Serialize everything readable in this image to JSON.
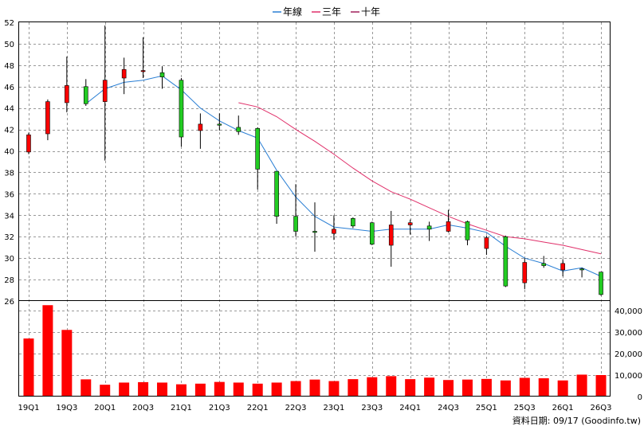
{
  "chart_data": {
    "type": "candlestick-volume",
    "legend": [
      {
        "name": "年線",
        "color": "#2a7fd4"
      },
      {
        "name": "三年",
        "color": "#e0306a"
      },
      {
        "name": "十年",
        "color": "#a0205a"
      }
    ],
    "price_axis": {
      "min": 26,
      "max": 52,
      "ticks": [
        26,
        28,
        30,
        32,
        34,
        36,
        38,
        40,
        42,
        44,
        46,
        48,
        50,
        52
      ]
    },
    "volume_axis": {
      "min": 0,
      "max": 40000,
      "ticks": [
        "0",
        "10,000",
        "20,000",
        "30,000",
        "40,000"
      ],
      "tick_values": [
        0,
        10000,
        20000,
        30000,
        40000
      ]
    },
    "x_tick_labels": [
      {
        "index": 0,
        "label": "19Q1"
      },
      {
        "index": 2,
        "label": "19Q3"
      },
      {
        "index": 4,
        "label": "20Q1"
      },
      {
        "index": 6,
        "label": "20Q3"
      },
      {
        "index": 8,
        "label": "21Q1"
      },
      {
        "index": 10,
        "label": "21Q3"
      },
      {
        "index": 12,
        "label": "22Q1"
      },
      {
        "index": 14,
        "label": "22Q3"
      },
      {
        "index": 16,
        "label": "23Q1"
      },
      {
        "index": 18,
        "label": "23Q3"
      },
      {
        "index": 20,
        "label": "24Q1"
      },
      {
        "index": 22,
        "label": "24Q3"
      },
      {
        "index": 24,
        "label": "25Q1"
      },
      {
        "index": 26,
        "label": "25Q3"
      },
      {
        "index": 28,
        "label": "26Q1"
      },
      {
        "index": 30,
        "label": "26Q3"
      }
    ],
    "candles": [
      {
        "o": 39.9,
        "h": 41.7,
        "l": 39.7,
        "c": 41.5
      },
      {
        "o": 41.6,
        "h": 44.8,
        "l": 41.0,
        "c": 44.6
      },
      {
        "o": 44.5,
        "h": 48.8,
        "l": 43.6,
        "c": 46.1
      },
      {
        "o": 46.0,
        "h": 46.7,
        "l": 44.2,
        "c": 44.4
      },
      {
        "o": 44.6,
        "h": 51.7,
        "l": 39.1,
        "c": 46.6
      },
      {
        "o": 46.8,
        "h": 48.7,
        "l": 45.3,
        "c": 47.6
      },
      {
        "o": 47.4,
        "h": 50.6,
        "l": 46.8,
        "c": 47.5
      },
      {
        "o": 47.3,
        "h": 47.9,
        "l": 45.8,
        "c": 46.9
      },
      {
        "o": 46.6,
        "h": 46.8,
        "l": 40.4,
        "c": 41.3
      },
      {
        "o": 41.9,
        "h": 43.5,
        "l": 40.2,
        "c": 42.5
      },
      {
        "o": 42.5,
        "h": 43.5,
        "l": 41.9,
        "c": 42.4
      },
      {
        "o": 42.2,
        "h": 43.3,
        "l": 41.5,
        "c": 41.8
      },
      {
        "o": 42.1,
        "h": 42.2,
        "l": 36.4,
        "c": 38.3
      },
      {
        "o": 38.1,
        "h": 38.1,
        "l": 33.2,
        "c": 33.9
      },
      {
        "o": 33.9,
        "h": 36.9,
        "l": 32.0,
        "c": 32.5
      },
      {
        "o": 32.5,
        "h": 35.2,
        "l": 30.6,
        "c": 32.4
      },
      {
        "o": 32.3,
        "h": 34.0,
        "l": 31.7,
        "c": 32.7
      },
      {
        "o": 33.7,
        "h": 33.8,
        "l": 32.8,
        "c": 33.0
      },
      {
        "o": 33.3,
        "h": 33.4,
        "l": 31.2,
        "c": 31.3
      },
      {
        "o": 31.2,
        "h": 34.4,
        "l": 29.2,
        "c": 33.1
      },
      {
        "o": 33.1,
        "h": 33.6,
        "l": 32.2,
        "c": 33.3
      },
      {
        "o": 33.0,
        "h": 33.4,
        "l": 31.6,
        "c": 32.7
      },
      {
        "o": 32.5,
        "h": 34.5,
        "l": 32.4,
        "c": 33.4
      },
      {
        "o": 33.4,
        "h": 33.5,
        "l": 31.2,
        "c": 31.7
      },
      {
        "o": 30.9,
        "h": 32.1,
        "l": 30.3,
        "c": 31.9
      },
      {
        "o": 32.0,
        "h": 32.1,
        "l": 27.3,
        "c": 27.4
      },
      {
        "o": 27.7,
        "h": 30.0,
        "l": 27.1,
        "c": 29.6
      },
      {
        "o": 29.5,
        "h": 30.2,
        "l": 29.1,
        "c": 29.3
      },
      {
        "o": 28.9,
        "h": 29.9,
        "l": 28.3,
        "c": 29.5
      },
      {
        "o": 29.0,
        "h": 29.1,
        "l": 28.2,
        "c": 28.9
      },
      {
        "o": 28.7,
        "h": 28.7,
        "l": 26.5,
        "c": 26.6
      }
    ],
    "volumes": [
      27000,
      42500,
      31000,
      8000,
      5500,
      6500,
      6700,
      6500,
      5700,
      6000,
      6800,
      6500,
      6000,
      6500,
      7200,
      7900,
      7200,
      8100,
      9000,
      9500,
      8100,
      8800,
      7700,
      7900,
      8200,
      7500,
      8700,
      8500,
      7500,
      10200,
      10000
    ],
    "series": [
      {
        "name": "年線",
        "color": "#2a7fd4",
        "x": [
          3,
          4,
          5,
          6,
          7,
          8,
          9,
          10,
          11,
          12,
          13,
          14,
          15,
          16,
          17,
          18,
          19,
          20,
          21,
          22,
          23,
          24,
          25,
          26,
          27,
          28,
          29,
          30
        ],
        "values": [
          44.4,
          45.8,
          46.4,
          46.6,
          47.0,
          45.7,
          44.0,
          42.8,
          41.9,
          41.2,
          38.2,
          35.7,
          33.9,
          32.9,
          32.7,
          32.5,
          32.7,
          32.7,
          32.7,
          33.1,
          32.8,
          32.4,
          31.1,
          30.0,
          29.5,
          28.8,
          29.1,
          28.3
        ]
      },
      {
        "name": "三年",
        "color": "#e0306a",
        "x": [
          11,
          12,
          13,
          14,
          15,
          16,
          17,
          18,
          19,
          20,
          21,
          22,
          23,
          24,
          25,
          26,
          27,
          28,
          29,
          30
        ],
        "values": [
          44.5,
          44.1,
          43.2,
          42.0,
          40.9,
          39.7,
          38.4,
          37.2,
          36.2,
          35.5,
          34.7,
          33.9,
          33.2,
          32.6,
          32.0,
          31.8,
          31.5,
          31.2,
          30.8,
          30.4
        ]
      }
    ],
    "footer": "資料日期: 09/17  (Goodinfo.tw)"
  }
}
